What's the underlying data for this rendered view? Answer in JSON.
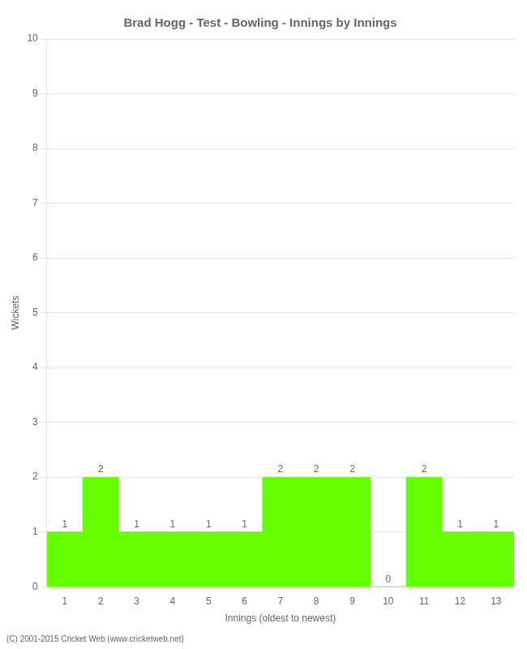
{
  "chart_data": {
    "type": "bar",
    "title": "Brad Hogg - Test - Bowling - Innings by Innings",
    "xlabel": "Innings (oldest to newest)",
    "ylabel": "Wickets",
    "categories": [
      "1",
      "2",
      "3",
      "4",
      "5",
      "6",
      "7",
      "8",
      "9",
      "10",
      "11",
      "12",
      "13"
    ],
    "values": [
      1,
      2,
      1,
      1,
      1,
      1,
      2,
      2,
      2,
      0,
      2,
      1,
      1
    ],
    "color": "#66ff00",
    "ylim": [
      0,
      10
    ],
    "yticks": [
      0,
      1,
      2,
      3,
      4,
      5,
      6,
      7,
      8,
      9,
      10
    ],
    "grid": true,
    "data_labels": true,
    "annotations": [
      "(C) 2001-2015 Cricket Web (www.cricketweb.net)"
    ]
  }
}
